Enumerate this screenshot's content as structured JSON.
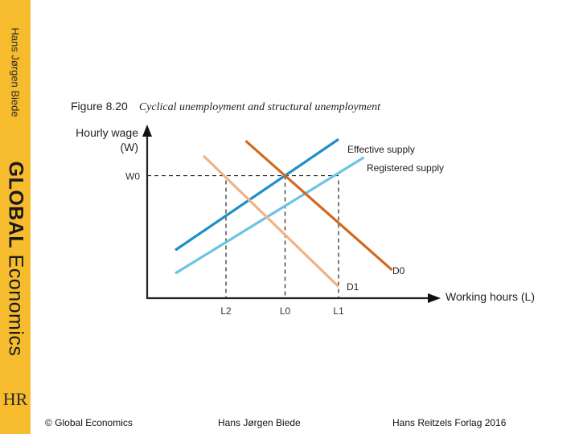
{
  "sidebar": {
    "author": "Hans Jørgen Biede",
    "brand_bold": "GLOBAL",
    "brand_rest": " Economics",
    "logo": "HR"
  },
  "figure": {
    "number": "Figure 8.20",
    "caption": "Cyclical unemployment and structural unemployment"
  },
  "footer": {
    "left": "© Global Economics",
    "center": "Hans Jørgen Biede",
    "right": "Hans Reitzels Forlag 2016"
  },
  "colors": {
    "sidebar": "#f6bc2e",
    "effective_supply": "#1e8fc7",
    "registered_supply": "#6cc3e3",
    "d0": "#d2691e",
    "d1": "#f0b285"
  },
  "chart_data": {
    "type": "line",
    "title": "Cyclical unemployment and structural unemployment",
    "ylabel_line1": "Hourly wage",
    "ylabel_line2": "(W)",
    "xlabel": "Working hours (L)",
    "xlim": [
      0,
      10
    ],
    "ylim": [
      0,
      10
    ],
    "series": [
      {
        "name": "Effective supply",
        "color": "#1e8fc7",
        "x": [
          1.0,
          6.8
        ],
        "y": [
          2.9,
          9.6
        ]
      },
      {
        "name": "Registered supply",
        "color": "#6cc3e3",
        "x": [
          1.0,
          7.7
        ],
        "y": [
          1.5,
          8.5
        ]
      },
      {
        "name": "D0",
        "color": "#d2691e",
        "x": [
          3.5,
          8.7
        ],
        "y": [
          9.5,
          1.7
        ]
      },
      {
        "name": "D1",
        "color": "#f0b285",
        "x": [
          2.0,
          6.8
        ],
        "y": [
          8.6,
          0.7
        ]
      }
    ],
    "reference_lines": {
      "horizontal": {
        "label": "W0",
        "y": 7.4
      },
      "vertical": [
        {
          "label": "L2",
          "x": 2.8
        },
        {
          "label": "L0",
          "x": 4.9
        },
        {
          "label": "L1",
          "x": 6.8
        }
      ]
    },
    "grid": false,
    "legend": "none"
  }
}
